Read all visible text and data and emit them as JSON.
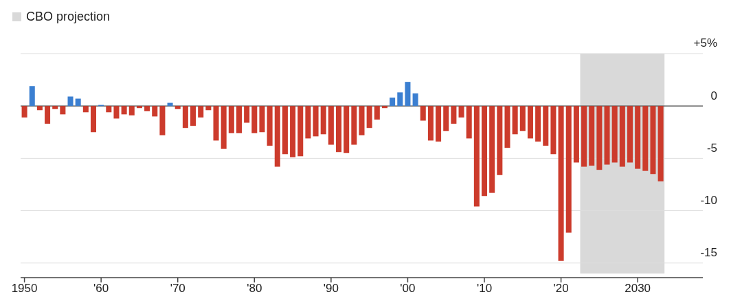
{
  "chart_data": {
    "type": "bar",
    "x": [
      1950,
      1951,
      1952,
      1953,
      1954,
      1955,
      1956,
      1957,
      1958,
      1959,
      1960,
      1961,
      1962,
      1963,
      1964,
      1965,
      1966,
      1967,
      1968,
      1969,
      1970,
      1971,
      1972,
      1973,
      1974,
      1975,
      1976,
      1977,
      1978,
      1979,
      1980,
      1981,
      1982,
      1983,
      1984,
      1985,
      1986,
      1987,
      1988,
      1989,
      1990,
      1991,
      1992,
      1993,
      1994,
      1995,
      1996,
      1997,
      1998,
      1999,
      2000,
      2001,
      2002,
      2003,
      2004,
      2005,
      2006,
      2007,
      2008,
      2009,
      2010,
      2011,
      2012,
      2013,
      2014,
      2015,
      2016,
      2017,
      2018,
      2019,
      2020,
      2021,
      2022,
      2023,
      2024,
      2025,
      2026,
      2027,
      2028,
      2029,
      2030,
      2031,
      2032,
      2033
    ],
    "values": [
      -1.1,
      1.9,
      -0.4,
      -1.7,
      -0.3,
      -0.8,
      0.9,
      0.7,
      -0.6,
      -2.5,
      0.1,
      -0.6,
      -1.2,
      -0.8,
      -0.9,
      -0.2,
      -0.5,
      -1.0,
      -2.8,
      0.3,
      -0.3,
      -2.1,
      -1.9,
      -1.1,
      -0.4,
      -3.3,
      -4.1,
      -2.6,
      -2.6,
      -1.6,
      -2.6,
      -2.5,
      -3.8,
      -5.8,
      -4.6,
      -4.9,
      -4.8,
      -3.1,
      -2.9,
      -2.7,
      -3.7,
      -4.4,
      -4.5,
      -3.7,
      -2.8,
      -2.1,
      -1.3,
      -0.2,
      0.8,
      1.3,
      2.3,
      1.2,
      -1.4,
      -3.3,
      -3.4,
      -2.4,
      -1.7,
      -1.1,
      -3.1,
      -9.6,
      -8.6,
      -8.3,
      -6.6,
      -4.0,
      -2.7,
      -2.4,
      -3.1,
      -3.4,
      -3.8,
      -4.6,
      -14.8,
      -12.1,
      -5.4,
      -5.8,
      -5.7,
      -6.1,
      -5.6,
      -5.4,
      -5.8,
      -5.4,
      -6.0,
      -6.2,
      -6.5,
      -7.2
    ],
    "colors": [
      "#cc3b2c",
      "#3b7fd1",
      "#cc3b2c",
      "#cc3b2c",
      "#cc3b2c",
      "#cc3b2c",
      "#3b7fd1",
      "#3b7fd1",
      "#cc3b2c",
      "#cc3b2c",
      "#3b7fd1",
      "#cc3b2c",
      "#cc3b2c",
      "#cc3b2c",
      "#cc3b2c",
      "#cc3b2c",
      "#cc3b2c",
      "#cc3b2c",
      "#cc3b2c",
      "#3b7fd1",
      "#cc3b2c",
      "#cc3b2c",
      "#cc3b2c",
      "#cc3b2c",
      "#cc3b2c",
      "#cc3b2c",
      "#cc3b2c",
      "#cc3b2c",
      "#cc3b2c",
      "#cc3b2c",
      "#cc3b2c",
      "#cc3b2c",
      "#cc3b2c",
      "#cc3b2c",
      "#cc3b2c",
      "#cc3b2c",
      "#cc3b2c",
      "#cc3b2c",
      "#cc3b2c",
      "#cc3b2c",
      "#cc3b2c",
      "#cc3b2c",
      "#cc3b2c",
      "#cc3b2c",
      "#cc3b2c",
      "#cc3b2c",
      "#cc3b2c",
      "#cc3b2c",
      "#3b7fd1",
      "#3b7fd1",
      "#3b7fd1",
      "#3b7fd1",
      "#cc3b2c",
      "#cc3b2c",
      "#cc3b2c",
      "#cc3b2c",
      "#cc3b2c",
      "#cc3b2c",
      "#cc3b2c",
      "#cc3b2c",
      "#cc3b2c",
      "#cc3b2c",
      "#cc3b2c",
      "#cc3b2c",
      "#cc3b2c",
      "#cc3b2c",
      "#cc3b2c",
      "#cc3b2c",
      "#cc3b2c",
      "#cc3b2c",
      "#cc3b2c",
      "#cc3b2c",
      "#cc3b2c",
      "#cc3b2c",
      "#cc3b2c",
      "#cc3b2c",
      "#cc3b2c",
      "#cc3b2c",
      "#cc3b2c",
      "#cc3b2c",
      "#cc3b2c",
      "#cc3b2c",
      "#cc3b2c",
      "#cc3b2c"
    ],
    "xlim": [
      1949.5,
      2038.5
    ],
    "xticks": [
      1950,
      {
        "value": 1960,
        "label": "'60"
      },
      {
        "value": 1970,
        "label": "'70"
      },
      {
        "value": 1980,
        "label": "'80"
      },
      {
        "value": 1990,
        "label": "'90"
      },
      {
        "value": 2000,
        "label": "'00"
      },
      {
        "value": 2010,
        "label": "'10"
      },
      {
        "value": 2020,
        "label": "'20"
      },
      2030
    ],
    "ylim": [
      -16,
      5
    ],
    "yticks": [
      {
        "value": 5,
        "label": "+5%"
      },
      0,
      -5,
      -10,
      -15
    ],
    "grid": "y",
    "bands": [
      {
        "axis": "x",
        "from": 2022.5,
        "to": 2033.5,
        "label": "CBO projection",
        "color": "#d9d9d9"
      }
    ],
    "legend": "top left"
  }
}
